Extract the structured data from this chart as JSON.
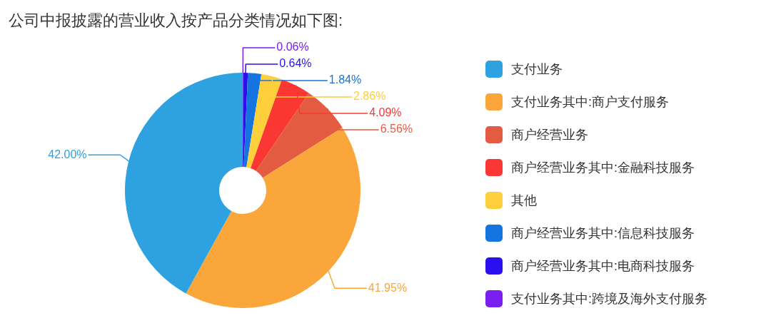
{
  "chart_data": {
    "type": "donut",
    "title": "公司中报披露的营业收入按产品分类情况如下图:",
    "categories": [
      "支付业务",
      "支付业务其中:商户支付服务",
      "商户经营业务",
      "商户经营业务其中:金融科技服务",
      "其他",
      "商户经营业务其中:信息科技服务",
      "商户经营业务其中:电商科技服务",
      "支付业务其中:跨境及海外支付服务"
    ],
    "values": [
      42.0,
      41.95,
      6.56,
      4.09,
      2.86,
      1.84,
      0.64,
      0.06
    ],
    "colors": [
      "#2ea1e0",
      "#fba63a",
      "#e35c42",
      "#fb3734",
      "#fdcf3a",
      "#1475e0",
      "#2a0ff0",
      "#7a1ff0"
    ],
    "value_labels": [
      "42.00%",
      "41.95%",
      "6.56%",
      "4.09%",
      "2.86%",
      "1.84%",
      "0.64%",
      "0.06%"
    ],
    "legend": "right"
  }
}
